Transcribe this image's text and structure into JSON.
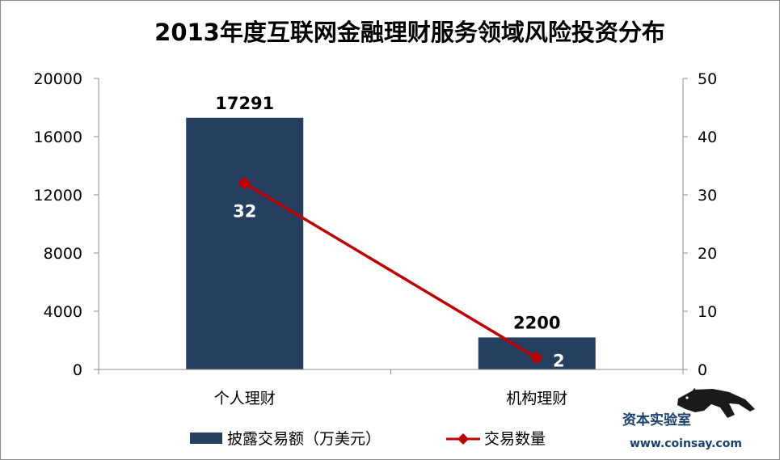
{
  "colors": {
    "bar": "#243f60",
    "line": "#c00000",
    "axis": "#8c8c8c",
    "text": "#000000",
    "watermark": "#1a3f6e"
  },
  "watermark": {
    "name": "资本实验室",
    "url": "www.coinsay.com",
    "icon": "panther-logo-icon"
  },
  "chart_data": {
    "type": "bar",
    "title": "2013年度互联网金融理财服务领域风险投资分布",
    "categories": [
      "个人理财",
      "机构理财"
    ],
    "series": [
      {
        "name": "披露交易额（万美元）",
        "kind": "bar",
        "axis": "left",
        "values": [
          17291,
          2200
        ],
        "labels": [
          "17291",
          "2200"
        ]
      },
      {
        "name": "交易数量",
        "kind": "line",
        "axis": "right",
        "values": [
          32,
          2
        ],
        "labels": [
          "32",
          "2"
        ]
      }
    ],
    "y_left": {
      "min": 0,
      "max": 20000,
      "ticks": [
        "0",
        "4000",
        "8000",
        "12000",
        "16000",
        "20000"
      ]
    },
    "y_right": {
      "min": 0,
      "max": 50,
      "ticks": [
        "0",
        "10",
        "20",
        "30",
        "40",
        "50"
      ]
    },
    "grid": false,
    "legend": "bottom"
  }
}
